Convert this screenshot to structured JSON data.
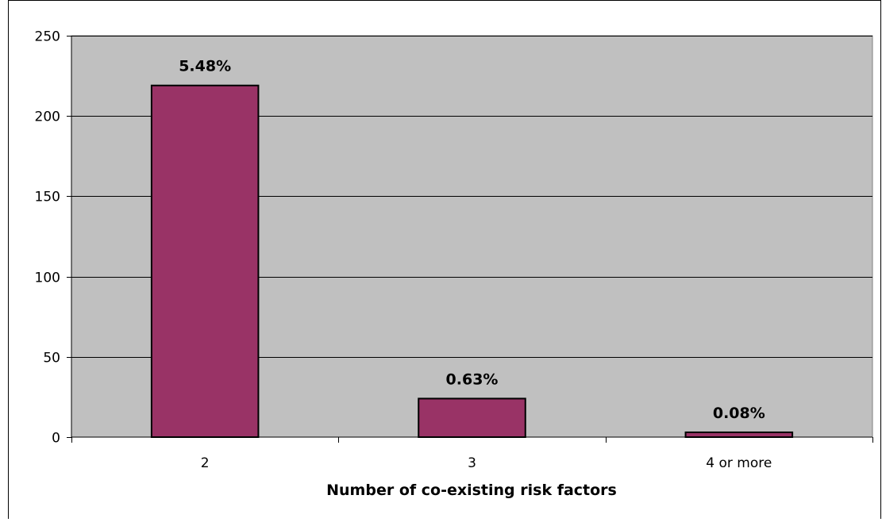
{
  "chart_data": {
    "type": "bar",
    "title": "",
    "xlabel": "Number of co-existing risk factors",
    "ylabel": "",
    "categories": [
      "2",
      "3",
      "4 or more"
    ],
    "values": [
      219,
      24,
      3
    ],
    "data_labels": [
      "5.48%",
      "0.63%",
      "0.08%"
    ],
    "ylim": [
      0,
      250
    ],
    "yticks": [
      0,
      50,
      100,
      150,
      200,
      250
    ],
    "grid": true,
    "legend": "none",
    "colors": {
      "bar_fill": "#993366",
      "bar_stroke": "#000000",
      "plot_background": "#c0c0c0",
      "gridline": "#000000",
      "page_background": "#ffffff"
    }
  }
}
